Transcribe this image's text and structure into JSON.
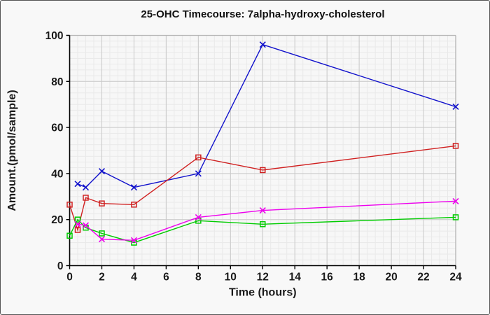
{
  "figure": {
    "title": "25-OHC Timecourse: 7alpha-hydroxy-cholesterol"
  },
  "chart_data": {
    "type": "line",
    "title": "25-OHC Timecourse: 7alpha-hydroxy-cholesterol",
    "xlabel": "Time (hours)",
    "ylabel": "Amount.(pmol/sample)",
    "xlim": [
      0,
      24
    ],
    "ylim": [
      0,
      100
    ],
    "x_ticks": [
      0,
      2,
      4,
      6,
      8,
      10,
      12,
      14,
      16,
      18,
      20,
      22,
      24
    ],
    "y_ticks": [
      0,
      20,
      40,
      60,
      80,
      100
    ],
    "grid": true,
    "legend_position": "none",
    "time_points_hours": [
      0,
      0.5,
      1,
      2,
      4,
      8,
      12,
      24
    ],
    "series": [
      {
        "name": "blue-series",
        "color": "#1212CC",
        "marker": "x",
        "x": [
          0.5,
          1,
          2,
          4,
          8,
          12,
          24
        ],
        "y": [
          35.5,
          34,
          41,
          34,
          40,
          96,
          69
        ]
      },
      {
        "name": "red-series",
        "color": "#D02020",
        "marker": "square",
        "x": [
          0,
          0.5,
          1,
          2,
          4,
          8,
          12,
          24
        ],
        "y": [
          26.5,
          15.5,
          29.5,
          27,
          26.5,
          47,
          41.5,
          52
        ]
      },
      {
        "name": "green-series",
        "color": "#00CC00",
        "marker": "square",
        "x": [
          0,
          0.5,
          1,
          2,
          4,
          8,
          12,
          24
        ],
        "y": [
          13,
          20,
          16.5,
          14,
          10,
          19.5,
          18,
          21
        ]
      },
      {
        "name": "magenta-series",
        "color": "#EE00EE",
        "marker": "x",
        "x": [
          0.5,
          1,
          2,
          4,
          8,
          12,
          24
        ],
        "y": [
          18,
          17.5,
          11.5,
          11,
          21,
          24,
          28
        ]
      }
    ]
  }
}
